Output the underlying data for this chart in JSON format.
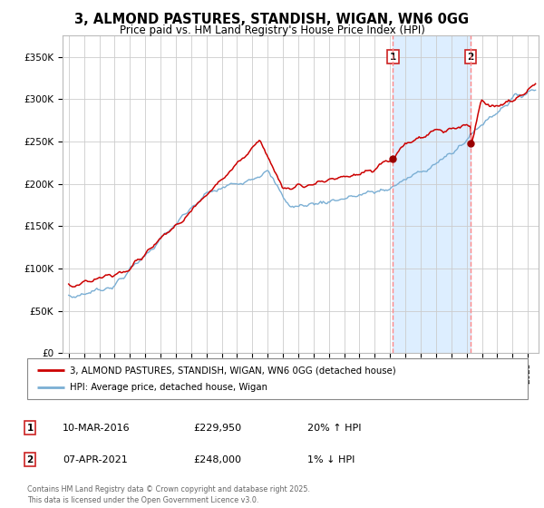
{
  "title": "3, ALMOND PASTURES, STANDISH, WIGAN, WN6 0GG",
  "subtitle": "Price paid vs. HM Land Registry's House Price Index (HPI)",
  "ylabel_ticks": [
    "£0",
    "£50K",
    "£100K",
    "£150K",
    "£200K",
    "£250K",
    "£300K",
    "£350K"
  ],
  "ytick_values": [
    0,
    50000,
    100000,
    150000,
    200000,
    250000,
    300000,
    350000
  ],
  "ylim": [
    0,
    375000
  ],
  "sale1_date": 2016.19,
  "sale1_price": 229950,
  "sale2_date": 2021.27,
  "sale2_price": 248000,
  "legend_line1": "3, ALMOND PASTURES, STANDISH, WIGAN, WN6 0GG (detached house)",
  "legend_line2": "HPI: Average price, detached house, Wigan",
  "sale1_text": "10-MAR-2016",
  "sale1_price_text": "£229,950",
  "sale1_hpi_text": "20% ↑ HPI",
  "sale2_text": "07-APR-2021",
  "sale2_price_text": "£248,000",
  "sale2_hpi_text": "1% ↓ HPI",
  "footer": "Contains HM Land Registry data © Crown copyright and database right 2025.\nThis data is licensed under the Open Government Licence v3.0.",
  "line_color_red": "#CC0000",
  "line_color_blue": "#7BAFD4",
  "shade_color": "#DDEEFF",
  "background_color": "#FFFFFF",
  "grid_color": "#CCCCCC",
  "dashed_line_color": "#FF8888",
  "marker_color": "#990000"
}
